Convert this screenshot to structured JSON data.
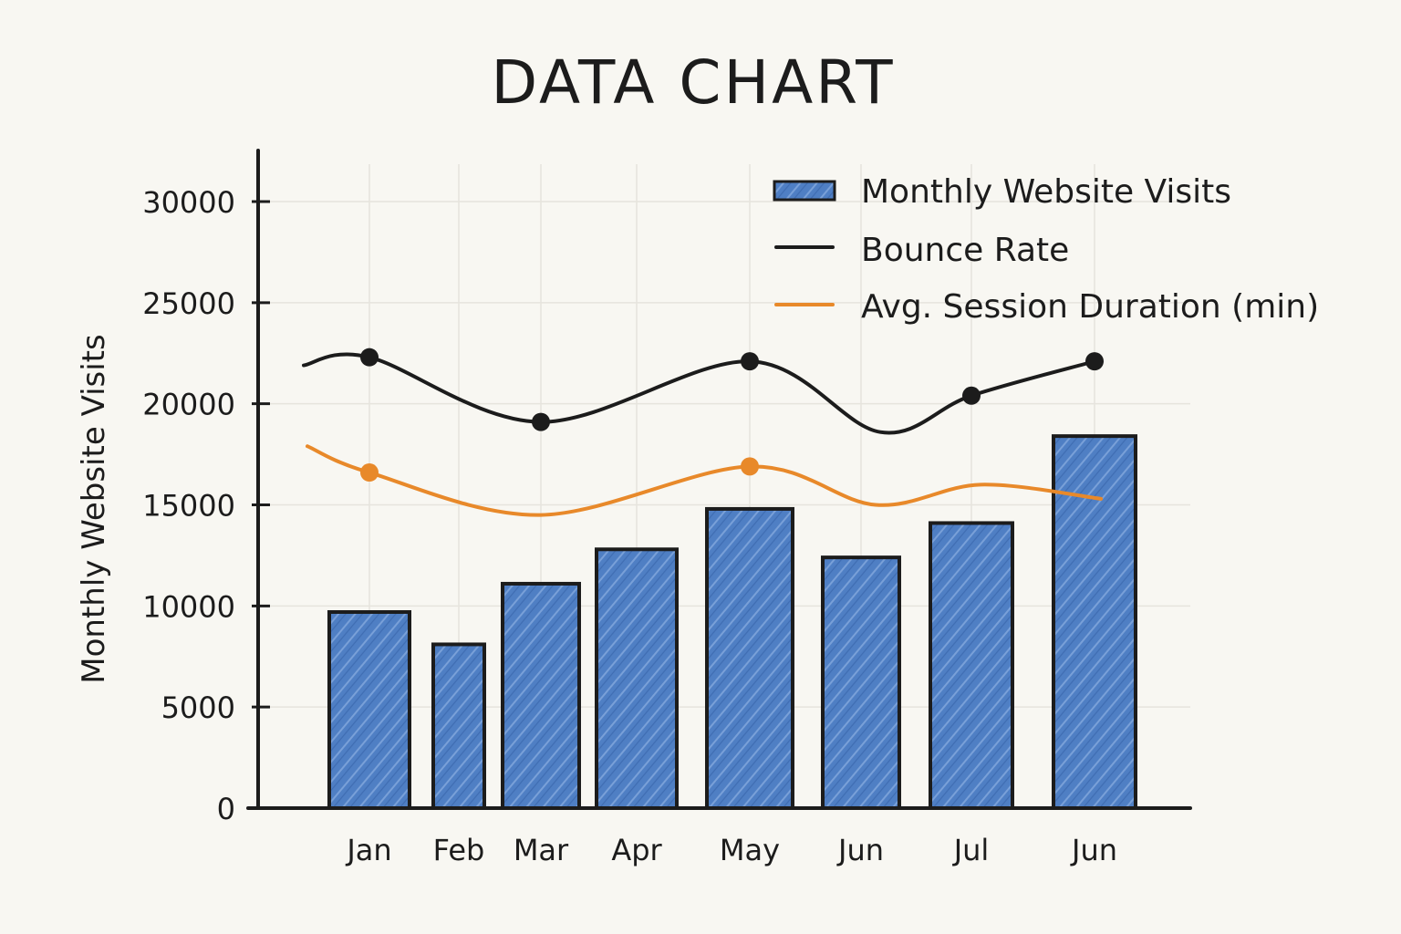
{
  "chart_data": {
    "type": "bar",
    "title": "DATA CHART",
    "ylabel": "Monthly Website Visits",
    "xlabel": "",
    "categories": [
      "Jan",
      "Feb",
      "Mar",
      "Apr",
      "May",
      "Jun",
      "Jul",
      "Jun"
    ],
    "ylim": [
      0,
      32000
    ],
    "yticks": [
      0,
      5000,
      10000,
      15000,
      20000,
      25000,
      30000
    ],
    "ytick_labels": [
      "0",
      "5000",
      "10000",
      "15000",
      "20000",
      "25000",
      "30000"
    ],
    "grid": true,
    "legend_position": "top-right",
    "series": [
      {
        "name": "Monthly Website Visits",
        "type": "bar",
        "color": "#4f7fc4",
        "values": [
          9700,
          8100,
          11100,
          12800,
          14800,
          12400,
          14100,
          18400
        ]
      },
      {
        "name": "Bounce Rate",
        "type": "line",
        "color": "#1c1c1c",
        "values": [
          22300,
          null,
          19100,
          null,
          22100,
          null,
          20400,
          22100
        ]
      },
      {
        "name": "Avg. Session Duration (min)",
        "type": "line",
        "color": "#e8892a",
        "values": [
          16600,
          null,
          null,
          null,
          16900,
          null,
          null,
          null
        ]
      }
    ]
  }
}
